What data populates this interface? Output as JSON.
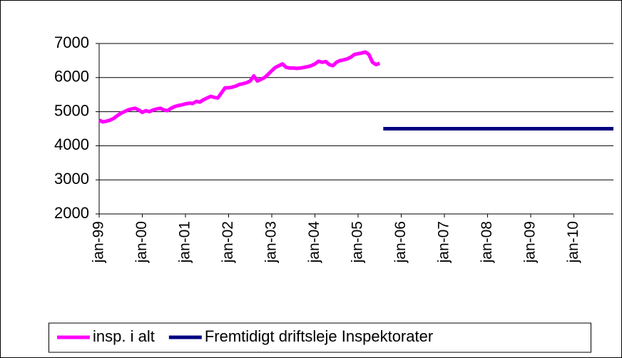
{
  "chart_data": {
    "type": "line",
    "categories": [
      "jan-99",
      null,
      null,
      null,
      null,
      null,
      null,
      null,
      null,
      null,
      null,
      null,
      "jan-00",
      null,
      null,
      null,
      null,
      null,
      null,
      null,
      null,
      null,
      null,
      null,
      "jan-01",
      null,
      null,
      null,
      null,
      null,
      null,
      null,
      null,
      null,
      null,
      null,
      "jan-02",
      null,
      null,
      null,
      null,
      null,
      null,
      null,
      null,
      null,
      null,
      null,
      "jan-03",
      null,
      null,
      null,
      null,
      null,
      null,
      null,
      null,
      null,
      null,
      null,
      "jan-04",
      null,
      null,
      null,
      null,
      null,
      null,
      null,
      null,
      null,
      null,
      null,
      "jan-05",
      null,
      null,
      null,
      null,
      null,
      null,
      null,
      null,
      null,
      null,
      null,
      "jan-06",
      null,
      null,
      null,
      null,
      null,
      null,
      null,
      null,
      null,
      null,
      null,
      "jan-07",
      null,
      null,
      null,
      null,
      null,
      null,
      null,
      null,
      null,
      null,
      null,
      "jan-08",
      null,
      null,
      null,
      null,
      null,
      null,
      null,
      null,
      null,
      null,
      null,
      "jan-09",
      null,
      null,
      null,
      null,
      null,
      null,
      null,
      null,
      null,
      null,
      null,
      "jan-10",
      null,
      null,
      null,
      null,
      null,
      null,
      null,
      null,
      null,
      null,
      null
    ],
    "series": [
      {
        "name": "insp. i alt",
        "color": "#ff00ff",
        "values": [
          4750,
          4700,
          4720,
          4750,
          4800,
          4880,
          4950,
          5000,
          5050,
          5080,
          5100,
          5050,
          4980,
          5030,
          5000,
          5050,
          5080,
          5100,
          5050,
          5030,
          5100,
          5150,
          5180,
          5200,
          5230,
          5250,
          5240,
          5300,
          5280,
          5350,
          5400,
          5450,
          5420,
          5400,
          5550,
          5700,
          5700,
          5720,
          5750,
          5800,
          5820,
          5850,
          5900,
          6050,
          5900,
          5950,
          6000,
          6100,
          6200,
          6300,
          6350,
          6400,
          6300,
          6280,
          6280,
          6270,
          6280,
          6300,
          6320,
          6350,
          6400,
          6480,
          6450,
          6470,
          6380,
          6350,
          6450,
          6500,
          6520,
          6550,
          6600,
          6680,
          6700,
          6720,
          6750,
          6680,
          6450,
          6380,
          6420,
          null,
          null,
          null,
          null,
          null,
          null,
          null,
          null,
          null,
          null,
          null,
          null,
          null,
          null,
          null,
          null,
          null,
          null,
          null,
          null,
          null,
          null,
          null,
          null,
          null,
          null,
          null,
          null,
          null,
          null,
          null,
          null,
          null,
          null,
          null,
          null,
          null,
          null,
          null,
          null,
          null,
          null,
          null,
          null,
          null,
          null,
          null,
          null,
          null,
          null,
          null,
          null,
          null,
          null,
          null,
          null,
          null,
          null,
          null,
          null,
          null,
          null,
          null,
          null,
          null
        ]
      },
      {
        "name": "Fremtidigt driftsleje Inspektorater",
        "color": "#000080",
        "values": [
          null,
          null,
          null,
          null,
          null,
          null,
          null,
          null,
          null,
          null,
          null,
          null,
          null,
          null,
          null,
          null,
          null,
          null,
          null,
          null,
          null,
          null,
          null,
          null,
          null,
          null,
          null,
          null,
          null,
          null,
          null,
          null,
          null,
          null,
          null,
          null,
          null,
          null,
          null,
          null,
          null,
          null,
          null,
          null,
          null,
          null,
          null,
          null,
          null,
          null,
          null,
          null,
          null,
          null,
          null,
          null,
          null,
          null,
          null,
          null,
          null,
          null,
          null,
          null,
          null,
          null,
          null,
          null,
          null,
          null,
          null,
          null,
          null,
          null,
          null,
          null,
          null,
          null,
          null,
          4500,
          4500,
          4500,
          4500,
          4500,
          4500,
          4500,
          4500,
          4500,
          4500,
          4500,
          4500,
          4500,
          4500,
          4500,
          4500,
          4500,
          4500,
          4500,
          4500,
          4500,
          4500,
          4500,
          4500,
          4500,
          4500,
          4500,
          4500,
          4500,
          4500,
          4500,
          4500,
          4500,
          4500,
          4500,
          4500,
          4500,
          4500,
          4500,
          4500,
          4500,
          4500,
          4500,
          4500,
          4500,
          4500,
          4500,
          4500,
          4500,
          4500,
          4500,
          4500,
          4500,
          4500,
          4500,
          4500,
          4500,
          4500,
          4500,
          4500,
          4500,
          4500,
          4500,
          4500,
          4500
        ]
      }
    ],
    "ylim": [
      2000,
      7000
    ],
    "yticks": [
      2000,
      3000,
      4000,
      5000,
      6000,
      7000
    ],
    "grid": true,
    "legend": "bottom"
  }
}
